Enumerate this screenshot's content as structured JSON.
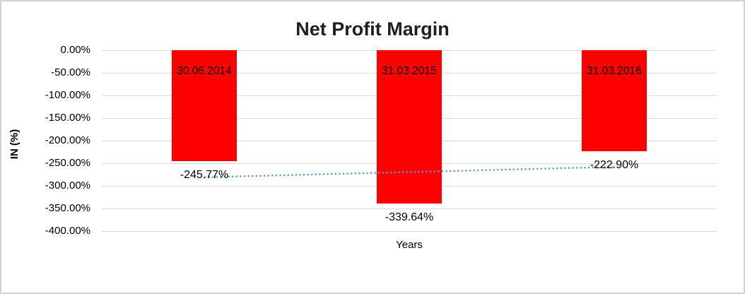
{
  "window": {
    "background": "#FFFFFF",
    "border_color": "#D2D2D2"
  },
  "chart_data": {
    "type": "bar",
    "title": "Net Profit Margin",
    "xlabel": "Years",
    "ylabel": "IN (%)",
    "categories": [
      "30.06.2014",
      "31.03.2015",
      "31.03.2016"
    ],
    "series": [
      {
        "name": "Net Profit Margin",
        "values": [
          -245.77,
          -339.64,
          -222.9
        ],
        "data_labels": [
          "-245.77%",
          "-339.64%",
          "-222.90%"
        ],
        "color": "#FF0000"
      }
    ],
    "y_ticks": [
      {
        "label": "0.00%",
        "value": 0
      },
      {
        "label": "-50.00%",
        "value": -50
      },
      {
        "label": "-100.00%",
        "value": -100
      },
      {
        "label": "-150.00%",
        "value": -150
      },
      {
        "label": "-200.00%",
        "value": -200
      },
      {
        "label": "-250.00%",
        "value": -250
      },
      {
        "label": "-300.00%",
        "value": -300
      },
      {
        "label": "-350.00%",
        "value": -350
      },
      {
        "label": "-400.00%",
        "value": -400
      }
    ],
    "ylim": [
      -400,
      0
    ],
    "grid": true,
    "gridline_color": "#D9D9D9",
    "legend": "none",
    "trendline": {
      "type": "linear",
      "style": "dotted",
      "color": "#5B9BD5",
      "start_value": -280.9,
      "end_value": -258.0
    }
  }
}
